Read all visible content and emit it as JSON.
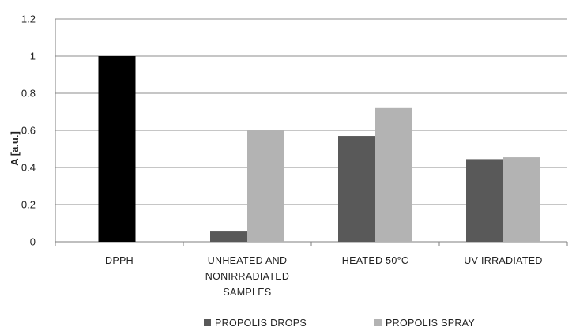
{
  "chart_data": {
    "type": "bar",
    "title": "",
    "xlabel": "",
    "ylabel": "A [a.u.]",
    "ylim": [
      0,
      1.2
    ],
    "yticks": [
      "0",
      "0.2",
      "0.4",
      "0.6",
      "0.8",
      "1",
      "1.2"
    ],
    "grid": true,
    "legend_position": "bottom",
    "categories": [
      [
        "DPPH"
      ],
      [
        "UNHEATED AND",
        "NONIRRADIATED",
        "SAMPLES"
      ],
      [
        "HEATED 50°C"
      ],
      [
        "UV-IRRADIATED"
      ]
    ],
    "dpph_value": 1.0,
    "dpph_color": "#000000",
    "series": [
      {
        "name": "PROPOLIS DROPS",
        "color": "#595959",
        "values": [
          null,
          0.055,
          0.57,
          0.445
        ]
      },
      {
        "name": "PROPOLIS SPRAY",
        "color": "#b3b3b3",
        "values": [
          null,
          0.6,
          0.72,
          0.455
        ]
      }
    ]
  }
}
